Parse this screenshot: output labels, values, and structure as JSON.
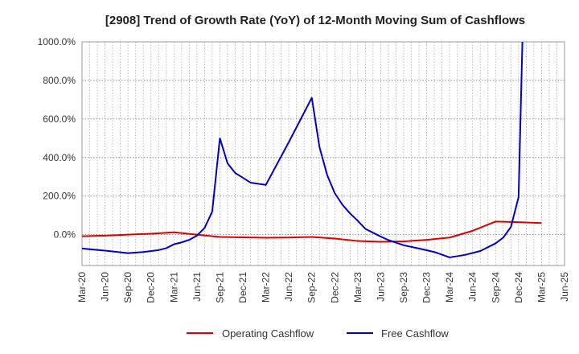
{
  "chart_data": {
    "type": "line",
    "title": "[2908]  Trend of Growth Rate (YoY) of 12-Month Moving Sum of Cashflows",
    "xlabel": "",
    "ylabel": "",
    "ylim": [
      -160,
      1000
    ],
    "y_ticks": [
      "0.0%",
      "200.0%",
      "400.0%",
      "600.0%",
      "800.0%",
      "1000.0%"
    ],
    "y_tick_values": [
      0,
      200,
      400,
      600,
      800,
      1000
    ],
    "x_tick_labels": [
      "Mar-20",
      "Jun-20",
      "Sep-20",
      "Dec-20",
      "Mar-21",
      "Jun-21",
      "Sep-21",
      "Dec-21",
      "Mar-22",
      "Jun-22",
      "Sep-22",
      "Dec-22",
      "Mar-23",
      "Jun-23",
      "Sep-23",
      "Dec-23",
      "Mar-24",
      "Jun-24",
      "Sep-24",
      "Dec-24",
      "Mar-25",
      "Jun-25"
    ],
    "x_range_months": [
      0,
      63
    ],
    "grid": true,
    "legend_position": "bottom",
    "series": [
      {
        "name": "Operating Cashflow",
        "color": "#dd0000",
        "points": [
          [
            0,
            -8
          ],
          [
            3,
            -5
          ],
          [
            6,
            0
          ],
          [
            9,
            5
          ],
          [
            12,
            12
          ],
          [
            15,
            0
          ],
          [
            18,
            -12
          ],
          [
            21,
            -14
          ],
          [
            24,
            -16
          ],
          [
            27,
            -15
          ],
          [
            30,
            -12
          ],
          [
            33,
            -20
          ],
          [
            36,
            -33
          ],
          [
            39,
            -37
          ],
          [
            42,
            -35
          ],
          [
            45,
            -27
          ],
          [
            48,
            -15
          ],
          [
            51,
            20
          ],
          [
            54,
            68
          ],
          [
            57,
            65
          ],
          [
            60,
            60
          ]
        ]
      },
      {
        "name": "Free Cashflow",
        "color": "#0000cc",
        "points": [
          [
            0,
            -72
          ],
          [
            3,
            -83
          ],
          [
            6,
            -96
          ],
          [
            8,
            -90
          ],
          [
            10,
            -80
          ],
          [
            11,
            -70
          ],
          [
            12,
            -50
          ],
          [
            13,
            -40
          ],
          [
            14,
            -27
          ],
          [
            15,
            -5
          ],
          [
            16,
            35
          ],
          [
            17,
            120
          ],
          [
            18,
            500
          ],
          [
            19,
            370
          ],
          [
            20,
            320
          ],
          [
            21,
            295
          ],
          [
            22,
            270
          ],
          [
            24,
            258
          ],
          [
            27,
            480
          ],
          [
            30,
            710
          ],
          [
            31,
            455
          ],
          [
            32,
            310
          ],
          [
            33,
            215
          ],
          [
            34,
            155
          ],
          [
            35,
            110
          ],
          [
            36,
            72
          ],
          [
            37,
            30
          ],
          [
            39,
            -10
          ],
          [
            40,
            -28
          ],
          [
            42,
            -55
          ],
          [
            44,
            -72
          ],
          [
            46,
            -90
          ],
          [
            48,
            -118
          ],
          [
            50,
            -105
          ],
          [
            52,
            -85
          ],
          [
            53,
            -65
          ],
          [
            54,
            -45
          ],
          [
            55,
            -15
          ],
          [
            56,
            40
          ],
          [
            57,
            195
          ],
          [
            57.5,
            1000
          ]
        ]
      }
    ]
  }
}
